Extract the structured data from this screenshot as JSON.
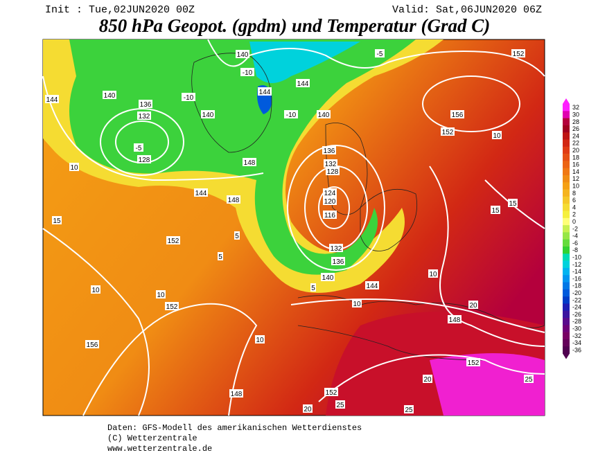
{
  "header": {
    "init": "Init : Tue,02JUN2020 00Z",
    "valid": "Valid: Sat,06JUN2020 06Z",
    "title": "850 hPa Geopot. (gpdm) und Temperatur (Grad C)"
  },
  "colorbar": {
    "values": [
      32,
      30,
      28,
      26,
      24,
      22,
      20,
      18,
      16,
      14,
      12,
      10,
      8,
      6,
      4,
      2,
      0,
      -2,
      -4,
      -6,
      -8,
      -10,
      -12,
      -14,
      -16,
      -18,
      -20,
      -22,
      -24,
      -26,
      -28,
      -30,
      -32,
      -34,
      -36
    ],
    "colors": [
      "#ff20ff",
      "#e000b0",
      "#b4003c",
      "#a00020",
      "#be1414",
      "#d22814",
      "#e03c14",
      "#e65014",
      "#ec6414",
      "#f07814",
      "#f08c14",
      "#f5a014",
      "#f5b41e",
      "#f5c828",
      "#f5dc32",
      "#f5f03c",
      "#ffff78",
      "#c8f050",
      "#96e646",
      "#64dc3c",
      "#32d232",
      "#00dcb4",
      "#00d2dc",
      "#00b4f0",
      "#0096f0",
      "#0078e6",
      "#005adc",
      "#003cc8",
      "#1e1eb4",
      "#3c14a0",
      "#5a0a8c",
      "#6e0078",
      "#780064",
      "#64005a",
      "#500050"
    ]
  },
  "map": {
    "contour_labels": [
      "140",
      "144",
      "140",
      "136",
      "132",
      "128",
      "-5",
      "-10",
      "140",
      "-10",
      "144",
      "-10",
      "144",
      "140",
      "-5",
      "152",
      "156",
      "152",
      "10",
      "136",
      "132",
      "128",
      "124",
      "120",
      "116",
      "148",
      "144",
      "148",
      "152",
      "15",
      "10",
      "10",
      "10",
      "152",
      "156",
      "132",
      "136",
      "140",
      "144",
      "10",
      "148",
      "152",
      "152",
      "20",
      "25",
      "20",
      "25",
      "25",
      "20",
      "15",
      "15",
      "10",
      "10",
      "148",
      "5",
      "5",
      "5"
    ]
  },
  "footer": {
    "lines": [
      "Daten: GFS-Modell des amerikanischen Wetterdienstes",
      "(C) Wetterzentrale",
      "www.wetterzentrale.de"
    ]
  }
}
